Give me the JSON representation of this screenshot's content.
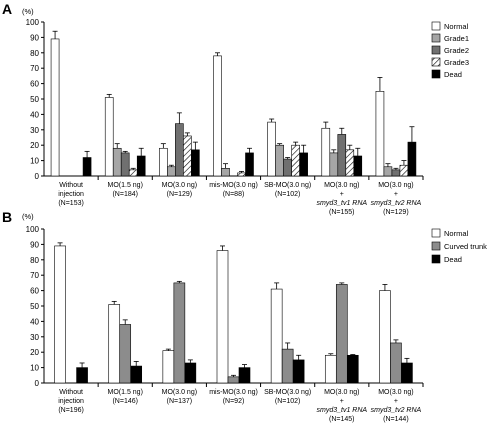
{
  "chart_data": [
    {
      "type": "bar",
      "panel_label": "A",
      "ylabel": "(%)",
      "ylim": [
        0,
        100
      ],
      "yticks": [
        0,
        10,
        20,
        30,
        40,
        50,
        60,
        70,
        80,
        90,
        100
      ],
      "legend_position": "top-right",
      "categories": [
        {
          "lines": [
            "Without",
            "injection",
            "(N=153)"
          ],
          "italic": [
            false,
            false,
            false
          ]
        },
        {
          "lines": [
            "MO(1.5 ng)",
            "(N=184)"
          ],
          "italic": [
            false,
            false
          ]
        },
        {
          "lines": [
            "MO(3.0 ng)",
            "(N=129)"
          ],
          "italic": [
            false,
            false
          ]
        },
        {
          "lines": [
            "mis-MO(3.0 ng)",
            "(N=88)"
          ],
          "italic": [
            false,
            false
          ]
        },
        {
          "lines": [
            "SB-MO(3.0 ng)",
            "(N=102)"
          ],
          "italic": [
            false,
            false
          ]
        },
        {
          "lines": [
            "MO(3.0 ng)",
            "+",
            "smyd3_tv1 RNA",
            "(N=155)"
          ],
          "italic": [
            false,
            false,
            true,
            false
          ]
        },
        {
          "lines": [
            "MO(3.0 ng)",
            "+",
            "smyd3_tv2 RNA",
            "(N=129)"
          ],
          "italic": [
            false,
            false,
            true,
            false
          ]
        }
      ],
      "series": [
        {
          "name": "Normal",
          "pattern": "white",
          "values": [
            89,
            51,
            18,
            78,
            35,
            31,
            55
          ],
          "errors": [
            5,
            2,
            3,
            2,
            2,
            4,
            9
          ]
        },
        {
          "name": "Grade1",
          "pattern": "lightgray",
          "values": [
            0,
            18,
            6,
            5,
            20,
            15,
            6
          ],
          "errors": [
            0,
            3,
            1,
            3,
            1,
            2,
            2
          ]
        },
        {
          "name": "Grade2",
          "pattern": "darkgray",
          "values": [
            0,
            15,
            34,
            0,
            11,
            27,
            4
          ],
          "errors": [
            0,
            1,
            7,
            0,
            1,
            4,
            1
          ]
        },
        {
          "name": "Grade3",
          "pattern": "hatch",
          "values": [
            0,
            4,
            26,
            2,
            20,
            17,
            7
          ],
          "errors": [
            0,
            1,
            2,
            1,
            2,
            3,
            3
          ]
        },
        {
          "name": "Dead",
          "pattern": "black",
          "values": [
            12,
            13,
            17,
            15,
            15,
            13,
            22
          ],
          "errors": [
            4,
            5,
            5,
            3,
            5,
            5,
            10
          ]
        }
      ]
    },
    {
      "type": "bar",
      "panel_label": "B",
      "ylabel": "(%)",
      "ylim": [
        0,
        100
      ],
      "yticks": [
        0,
        10,
        20,
        30,
        40,
        50,
        60,
        70,
        80,
        90,
        100
      ],
      "legend_position": "top-right",
      "categories": [
        {
          "lines": [
            "Without",
            "injection",
            "(N=196)"
          ],
          "italic": [
            false,
            false,
            false
          ]
        },
        {
          "lines": [
            "MO(1.5 ng)",
            "(N=146)"
          ],
          "italic": [
            false,
            false
          ]
        },
        {
          "lines": [
            "MO(3.0 ng)",
            "(N=137)"
          ],
          "italic": [
            false,
            false
          ]
        },
        {
          "lines": [
            "mis-MO(3.0 ng)",
            "(N=92)"
          ],
          "italic": [
            false,
            false
          ]
        },
        {
          "lines": [
            "SB-MO(3.0 ng)",
            "(N=102)"
          ],
          "italic": [
            false,
            false
          ]
        },
        {
          "lines": [
            "MO(3.0 ng)",
            "+",
            "smyd3_tv1 RNA",
            "(N=145)"
          ],
          "italic": [
            false,
            false,
            true,
            false
          ]
        },
        {
          "lines": [
            "MO(3.0 ng)",
            "+",
            "smyd3_tv2 RNA",
            "(N=144)"
          ],
          "italic": [
            false,
            false,
            true,
            false
          ]
        }
      ],
      "series": [
        {
          "name": "Normal",
          "pattern": "white",
          "values": [
            89,
            51,
            21,
            86,
            61,
            18,
            60
          ],
          "errors": [
            2,
            2,
            1,
            3,
            4,
            1,
            4
          ]
        },
        {
          "name": "Curved trunk",
          "pattern": "gray",
          "values": [
            0,
            38,
            65,
            4,
            22,
            64,
            26
          ],
          "errors": [
            0,
            3,
            1,
            1,
            4,
            1,
            2
          ]
        },
        {
          "name": "Dead",
          "pattern": "black",
          "values": [
            10,
            11,
            13,
            10,
            15,
            18,
            13
          ],
          "errors": [
            3,
            3,
            2,
            2,
            3,
            0.5,
            3
          ]
        }
      ]
    }
  ]
}
